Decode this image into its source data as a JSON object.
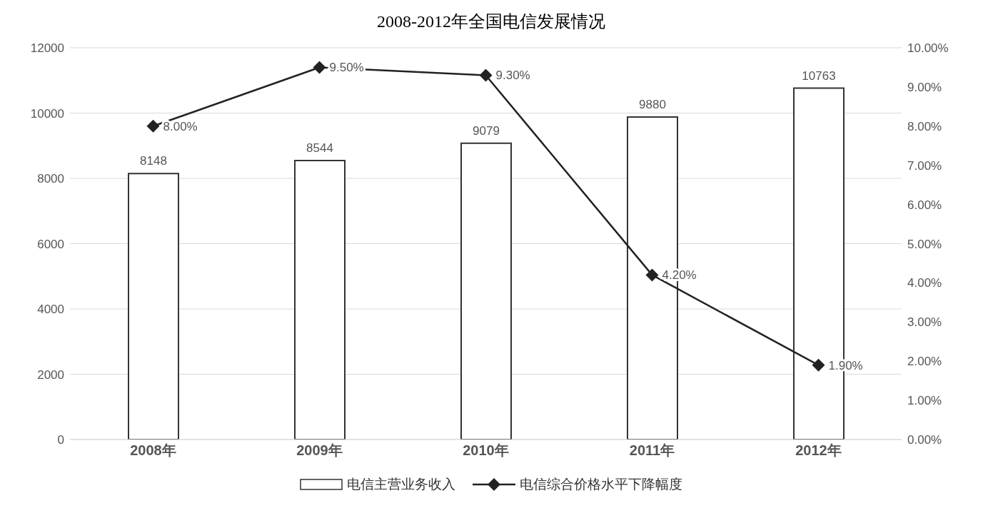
{
  "chart_data": {
    "type": "bar",
    "title": "2008-2012年全国电信发展情况",
    "categories": [
      "2008年",
      "2009年",
      "2010年",
      "2011年",
      "2012年"
    ],
    "series": [
      {
        "name": "电信主营业务收入",
        "color": "#ffffff",
        "values": [
          8148,
          8544,
          9079,
          9880,
          10763
        ],
        "value_labels": [
          "8148",
          "8544",
          "9079",
          "9880",
          "10763"
        ]
      },
      {
        "name": "电信综合价格水平下降幅度",
        "type": "line",
        "axis": "y2",
        "color": "#222222",
        "values": [
          8.0,
          9.5,
          9.3,
          4.2,
          1.9
        ],
        "value_labels": [
          "8.00%",
          "9.50%",
          "9.30%",
          "4.20%",
          "1.90%"
        ]
      }
    ],
    "ylim": [
      0,
      12000
    ],
    "yticks": [
      0,
      2000,
      4000,
      6000,
      8000,
      10000,
      12000
    ],
    "y2lim": [
      0,
      10
    ],
    "y2ticks": [
      {
        "value": 0,
        "label": "0.00%"
      },
      {
        "value": 1,
        "label": "1.00%"
      },
      {
        "value": 2,
        "label": "2.00%"
      },
      {
        "value": 3,
        "label": "3.00%"
      },
      {
        "value": 4,
        "label": "4.00%"
      },
      {
        "value": 5,
        "label": "5.00%"
      },
      {
        "value": 6,
        "label": "6.00%"
      },
      {
        "value": 7,
        "label": "7.00%"
      },
      {
        "value": 8,
        "label": "8.00%"
      },
      {
        "value": 9,
        "label": "9.00%"
      },
      {
        "value": 10,
        "label": "10.00%"
      }
    ],
    "grid": "y",
    "legend": "bottom",
    "marker": "diamond",
    "line_style": "solid"
  }
}
